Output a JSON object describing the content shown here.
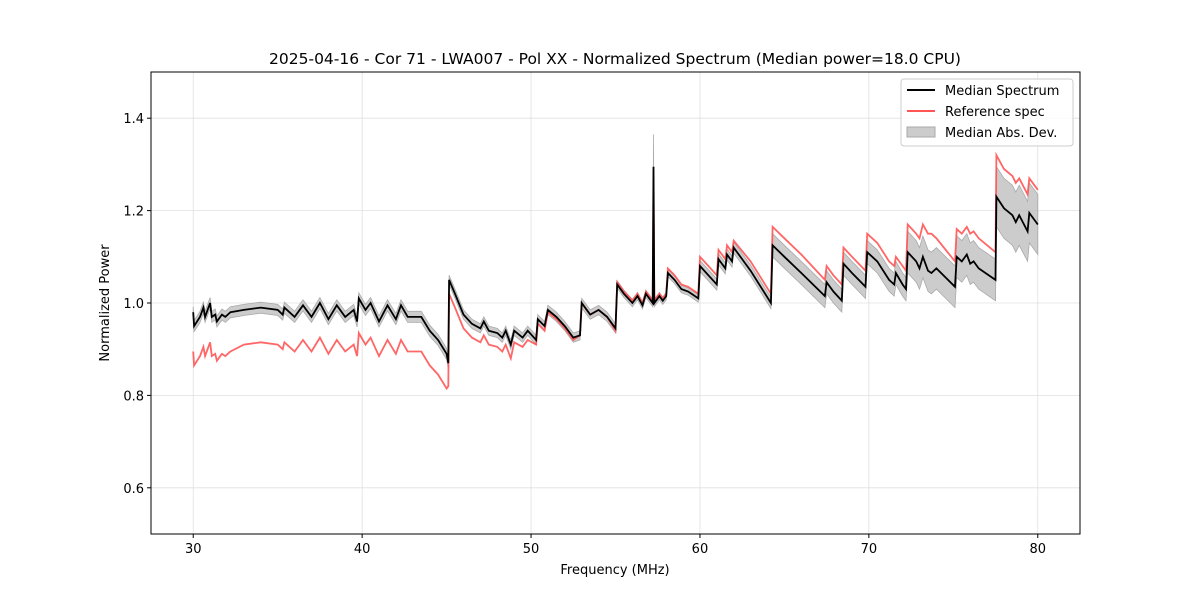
{
  "chart_data": {
    "type": "line",
    "title": "2025-04-16 - Cor 71 - LWA007 - Pol XX - Normalized Spectrum (Median power=18.0 CPU)",
    "xlabel": "Frequency (MHz)",
    "ylabel": "Normalized Power",
    "xlim": [
      27.5,
      82.5
    ],
    "ylim": [
      0.5,
      1.5
    ],
    "xticks": [
      30,
      40,
      50,
      60,
      70,
      80
    ],
    "yticks": [
      0.6,
      0.8,
      1.0,
      1.2,
      1.4
    ],
    "xtick_labels": [
      "30",
      "40",
      "50",
      "60",
      "70",
      "80"
    ],
    "ytick_labels": [
      "0.6",
      "0.8",
      "1.0",
      "1.2",
      "1.4"
    ],
    "grid": true,
    "legend_position": "top-right",
    "legend": [
      "Median Spectrum",
      "Reference spec",
      "Median Abs. Dev."
    ],
    "colors": {
      "median": "#000000",
      "reference": "#ff5555",
      "mad": "#bbbbbb"
    },
    "frequency": [
      30.0,
      30.05,
      30.4,
      30.6,
      30.7,
      31.0,
      31.1,
      31.3,
      31.4,
      31.7,
      31.9,
      32.2,
      33,
      34,
      35,
      35.3,
      35.4,
      36.0,
      36.5,
      37.0,
      37.5,
      38.0,
      38.5,
      39.0,
      39.5,
      39.7,
      39.8,
      40.2,
      40.5,
      41.0,
      41.5,
      42.0,
      42.3,
      42.7,
      43.5,
      44.0,
      44.5,
      45.0,
      45.1,
      45.15,
      45.5,
      46.0,
      46.5,
      47.0,
      47.2,
      47.5,
      48,
      48.3,
      48.5,
      48.8,
      49.0,
      49.5,
      49.8,
      50.3,
      50.4,
      50.8,
      51.0,
      51.5,
      52.0,
      52.5,
      52.9,
      53.0,
      53.5,
      54.0,
      54.5,
      55.0,
      55.1,
      55.5,
      56.0,
      56.3,
      56.6,
      56.8,
      57.2,
      57.25,
      57.3,
      57.6,
      57.8,
      58.0,
      58.1,
      58.5,
      58.9,
      59.3,
      59.5,
      59.9,
      60.0,
      60.5,
      61.0,
      61.1,
      61.5,
      61.6,
      61.9,
      62.0,
      63,
      64.2,
      64.3,
      65,
      66,
      67.4,
      67.5,
      67.9,
      68.4,
      68.5,
      69.0,
      69.8,
      69.9,
      70.5,
      71.2,
      71.5,
      71.6,
      72.0,
      72.2,
      72.3,
      72.8,
      73.0,
      73.2,
      73.5,
      73.7,
      74,
      75.1,
      75.2,
      75.5,
      75.8,
      76.0,
      76.2,
      76.5,
      77.5,
      77.55,
      78,
      78.5,
      78.7,
      78.9,
      79.4,
      79.5,
      80.0
    ],
    "median": [
      0.98,
      0.95,
      0.97,
      0.99,
      0.97,
      1.0,
      0.97,
      0.975,
      0.96,
      0.975,
      0.97,
      0.98,
      0.985,
      0.99,
      0.985,
      0.975,
      0.99,
      0.97,
      0.995,
      0.97,
      1.0,
      0.965,
      0.995,
      0.97,
      0.985,
      0.96,
      1.01,
      0.985,
      1.0,
      0.96,
      0.995,
      0.965,
      0.995,
      0.97,
      0.97,
      0.94,
      0.92,
      0.89,
      0.87,
      1.05,
      1.02,
      0.975,
      0.955,
      0.945,
      0.96,
      0.94,
      0.935,
      0.925,
      0.94,
      0.91,
      0.94,
      0.925,
      0.94,
      0.92,
      0.965,
      0.95,
      0.985,
      0.97,
      0.95,
      0.925,
      0.93,
      1.0,
      0.975,
      0.985,
      0.97,
      0.945,
      1.04,
      1.02,
      1.0,
      1.015,
      0.995,
      1.02,
      1.0,
      1.295,
      1.0,
      1.015,
      1.005,
      1.015,
      1.065,
      1.05,
      1.03,
      1.025,
      1.02,
      1.01,
      1.08,
      1.06,
      1.04,
      1.095,
      1.075,
      1.105,
      1.09,
      1.12,
      1.07,
      1.0,
      1.125,
      1.1,
      1.065,
      1.015,
      1.045,
      1.025,
      1.005,
      1.085,
      1.065,
      1.035,
      1.11,
      1.09,
      1.05,
      1.04,
      1.065,
      1.04,
      1.03,
      1.11,
      1.09,
      1.075,
      1.1,
      1.07,
      1.065,
      1.075,
      1.035,
      1.1,
      1.09,
      1.105,
      1.085,
      1.09,
      1.075,
      1.05,
      1.23,
      1.205,
      1.19,
      1.175,
      1.19,
      1.155,
      1.195,
      1.17
    ],
    "reference": [
      0.895,
      0.865,
      0.885,
      0.905,
      0.885,
      0.915,
      0.885,
      0.89,
      0.875,
      0.89,
      0.885,
      0.895,
      0.91,
      0.915,
      0.91,
      0.9,
      0.915,
      0.895,
      0.92,
      0.895,
      0.925,
      0.89,
      0.92,
      0.895,
      0.91,
      0.885,
      0.935,
      0.91,
      0.925,
      0.885,
      0.92,
      0.89,
      0.92,
      0.895,
      0.895,
      0.865,
      0.845,
      0.815,
      0.82,
      1.02,
      0.99,
      0.945,
      0.925,
      0.915,
      0.93,
      0.91,
      0.905,
      0.895,
      0.91,
      0.88,
      0.915,
      0.905,
      0.92,
      0.91,
      0.955,
      0.94,
      0.98,
      0.965,
      0.945,
      0.92,
      0.93,
      1.0,
      0.975,
      0.985,
      0.97,
      0.94,
      1.045,
      1.025,
      1.005,
      1.02,
      1.0,
      1.025,
      1.005,
      1.25,
      1.005,
      1.02,
      1.01,
      1.02,
      1.075,
      1.06,
      1.04,
      1.035,
      1.03,
      1.02,
      1.1,
      1.08,
      1.06,
      1.115,
      1.095,
      1.125,
      1.11,
      1.135,
      1.09,
      1.02,
      1.165,
      1.14,
      1.105,
      1.05,
      1.08,
      1.06,
      1.04,
      1.12,
      1.1,
      1.07,
      1.15,
      1.13,
      1.09,
      1.08,
      1.1,
      1.08,
      1.07,
      1.17,
      1.15,
      1.14,
      1.17,
      1.15,
      1.15,
      1.14,
      1.09,
      1.16,
      1.15,
      1.165,
      1.15,
      1.155,
      1.14,
      1.11,
      1.32,
      1.29,
      1.275,
      1.26,
      1.27,
      1.235,
      1.27,
      1.245
    ],
    "mad": [
      0.012,
      0.012,
      0.012,
      0.012,
      0.012,
      0.012,
      0.012,
      0.012,
      0.012,
      0.012,
      0.012,
      0.012,
      0.012,
      0.012,
      0.012,
      0.012,
      0.012,
      0.012,
      0.012,
      0.012,
      0.012,
      0.012,
      0.012,
      0.012,
      0.012,
      0.012,
      0.012,
      0.012,
      0.012,
      0.012,
      0.012,
      0.012,
      0.012,
      0.012,
      0.012,
      0.012,
      0.012,
      0.012,
      0.012,
      0.01,
      0.01,
      0.01,
      0.01,
      0.01,
      0.01,
      0.01,
      0.01,
      0.01,
      0.01,
      0.01,
      0.01,
      0.01,
      0.01,
      0.01,
      0.01,
      0.01,
      0.01,
      0.01,
      0.01,
      0.01,
      0.01,
      0.01,
      0.01,
      0.01,
      0.01,
      0.01,
      0.008,
      0.008,
      0.008,
      0.008,
      0.008,
      0.008,
      0.008,
      0.07,
      0.008,
      0.008,
      0.008,
      0.008,
      0.008,
      0.008,
      0.008,
      0.008,
      0.008,
      0.008,
      0.012,
      0.012,
      0.012,
      0.012,
      0.012,
      0.012,
      0.012,
      0.012,
      0.012,
      0.012,
      0.025,
      0.025,
      0.025,
      0.025,
      0.025,
      0.025,
      0.025,
      0.025,
      0.025,
      0.025,
      0.025,
      0.025,
      0.025,
      0.025,
      0.025,
      0.025,
      0.025,
      0.045,
      0.045,
      0.045,
      0.045,
      0.045,
      0.045,
      0.045,
      0.045,
      0.045,
      0.045,
      0.045,
      0.045,
      0.045,
      0.045,
      0.045,
      0.065,
      0.065,
      0.065,
      0.065,
      0.065,
      0.065,
      0.065,
      0.065
    ]
  }
}
